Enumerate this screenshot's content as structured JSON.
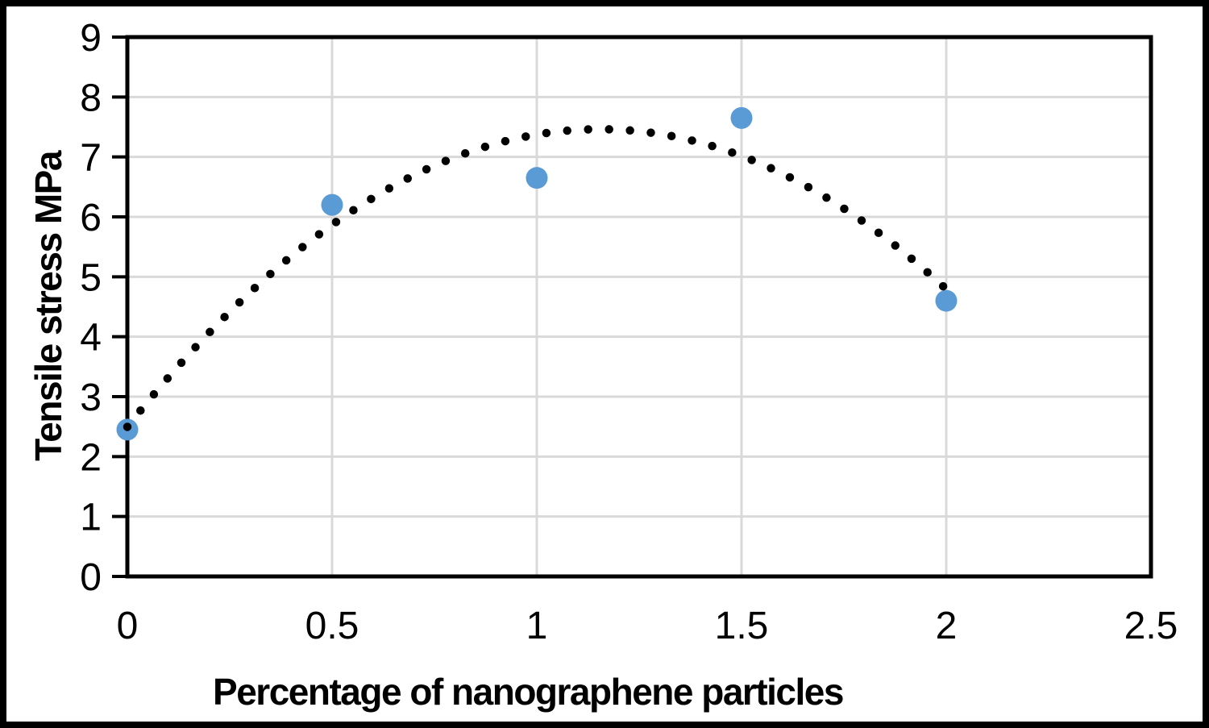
{
  "chart_data": {
    "type": "scatter",
    "series": [
      {
        "name": "Tensile stress",
        "x": [
          0,
          0.5,
          1,
          1.5,
          2
        ],
        "y": [
          2.45,
          6.2,
          6.65,
          7.65,
          4.6
        ],
        "marker": "circle",
        "marker_color": "#5B9BD5"
      }
    ],
    "trendline": {
      "type": "polynomial",
      "order": 2,
      "coefficients": {
        "a": -3.729,
        "b": 8.607,
        "c": 2.496
      },
      "x_start": 0,
      "x_end": 2,
      "style": "dotted",
      "color": "#000000"
    },
    "title": "",
    "xlabel": "Percentage of nanographene particles",
    "ylabel": "Tensile stress MPa",
    "xlim": [
      0,
      2.5
    ],
    "ylim": [
      0,
      9
    ],
    "xticks": [
      "0",
      "0.5",
      "1",
      "1.5",
      "2",
      "2.5"
    ],
    "yticks": [
      "0",
      "1",
      "2",
      "3",
      "4",
      "5",
      "6",
      "7",
      "8",
      "9"
    ],
    "grid": true,
    "legend_position": "none",
    "colors": {
      "gridline": "#D9D9D9",
      "axis": "#000000",
      "text": "#000000",
      "background": "#FFFFFF",
      "outer_border": "#000000"
    }
  }
}
